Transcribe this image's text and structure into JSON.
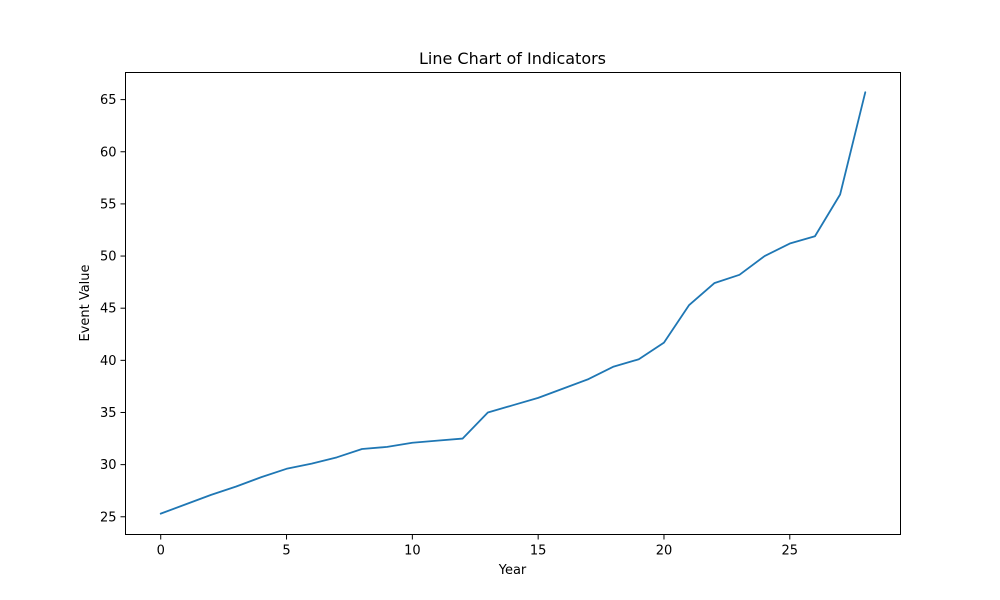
{
  "chart_data": {
    "type": "line",
    "title": "Line Chart of Indicators",
    "xlabel": "Year",
    "ylabel": "Event Value",
    "xlim": [
      -1.4,
      29.4
    ],
    "ylim": [
      23.3,
      67.6
    ],
    "xticks": [
      0,
      5,
      10,
      15,
      20,
      25
    ],
    "yticks": [
      25,
      30,
      35,
      40,
      45,
      50,
      55,
      60,
      65
    ],
    "grid": false,
    "legend": "none",
    "series": [
      {
        "color": "#1f77b4",
        "x": [
          0,
          1,
          2,
          3,
          4,
          5,
          6,
          7,
          8,
          9,
          10,
          11,
          12,
          13,
          14,
          15,
          16,
          17,
          18,
          19,
          20,
          21,
          22,
          23,
          24,
          25,
          26,
          27,
          28
        ],
        "y": [
          25.3,
          26.2,
          27.1,
          27.9,
          28.8,
          29.6,
          30.1,
          30.7,
          31.5,
          31.7,
          32.1,
          32.3,
          32.5,
          35.0,
          35.7,
          36.4,
          37.3,
          38.2,
          39.4,
          40.1,
          41.7,
          45.3,
          47.4,
          48.2,
          50.0,
          51.2,
          51.9,
          55.9,
          65.7
        ]
      }
    ]
  }
}
